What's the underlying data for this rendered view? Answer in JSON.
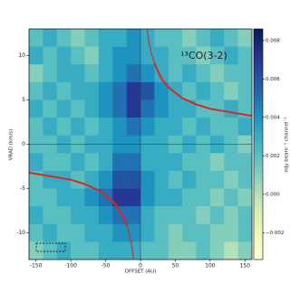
{
  "chart_data": {
    "type": "heatmap",
    "title": "¹³CO(3-2)",
    "x_label": "OFFSET (AU)",
    "y_label": "VRAD (km/s)",
    "colorbar_label": "mJy beam⁻¹ channel⁻¹",
    "xlim": [
      -160,
      160
    ],
    "ylim": [
      -13,
      13
    ],
    "xticks": [
      -150,
      -100,
      -50,
      0,
      50,
      100,
      150
    ],
    "yticks": [
      -10,
      -5,
      0,
      5,
      10
    ],
    "clim": [
      -0.0034,
      0.0086
    ],
    "cticks": [
      {
        "value": -0.002,
        "label": "−0.002"
      },
      {
        "value": 0,
        "label": "0.000"
      },
      0.002,
      0.004,
      0.006,
      0.008
    ],
    "colormap": [
      "#ffffd9",
      "#edf8b1",
      "#c7e9b4",
      "#7fcdbb",
      "#41b6c4",
      "#1d91c0",
      "#225ea8",
      "#253494",
      "#081d58"
    ],
    "hlines": [
      0
    ],
    "vlines": [
      0
    ],
    "x": [
      -150,
      -130,
      -110,
      -90,
      -70,
      -50,
      -30,
      -10,
      10,
      30,
      50,
      70,
      90,
      110,
      130,
      150
    ],
    "y": [
      12,
      10,
      8,
      6,
      4,
      2,
      0,
      -2,
      -4,
      -6,
      -8,
      -10,
      -12
    ],
    "z": [
      [
        0.002,
        0.003,
        0.002,
        0.001,
        0.002,
        0.003,
        0.003,
        0.004,
        0.003,
        0.002,
        0.002,
        0.001,
        0.002,
        0.003,
        0.002,
        0.001
      ],
      [
        0.003,
        0.002,
        0.003,
        0.002,
        0.001,
        0.003,
        0.004,
        0.004,
        0.003,
        0.003,
        0.002,
        0.002,
        0.001,
        0.002,
        0.003,
        0.002
      ],
      [
        0.001,
        0.002,
        0.003,
        0.003,
        0.002,
        0.003,
        0.004,
        0.005,
        0.004,
        0.003,
        0.002,
        0.003,
        0.002,
        0.001,
        0.002,
        0.002
      ],
      [
        0.002,
        0.003,
        0.002,
        0.003,
        0.003,
        0.004,
        0.005,
        0.007,
        0.006,
        0.004,
        0.003,
        0.002,
        0.003,
        0.002,
        0.001,
        0.002
      ],
      [
        0.003,
        0.002,
        0.003,
        0.002,
        0.003,
        0.004,
        0.005,
        0.007,
        0.005,
        0.004,
        0.003,
        0.003,
        0.002,
        0.002,
        0.003,
        0.002
      ],
      [
        0.002,
        0.003,
        0.002,
        0.003,
        0.002,
        0.003,
        0.004,
        0.005,
        0.004,
        0.003,
        0.003,
        0.002,
        0.003,
        0.002,
        0.002,
        0.003
      ],
      [
        0.002,
        0.002,
        0.003,
        0.002,
        0.003,
        0.003,
        0.004,
        0.004,
        0.003,
        0.003,
        0.002,
        0.003,
        0.002,
        0.003,
        0.002,
        0.001
      ],
      [
        0.003,
        0.002,
        0.002,
        0.003,
        0.002,
        0.003,
        0.005,
        0.005,
        0.003,
        0.003,
        0.003,
        0.002,
        0.002,
        0.001,
        0.002,
        0.002
      ],
      [
        0.002,
        0.003,
        0.003,
        0.002,
        0.003,
        0.004,
        0.006,
        0.006,
        0.004,
        0.003,
        0.002,
        0.003,
        0.002,
        0.002,
        0.001,
        0.002
      ],
      [
        0.002,
        0.002,
        0.003,
        0.003,
        0.004,
        0.005,
        0.007,
        0.007,
        0.004,
        0.003,
        0.003,
        0.002,
        0.002,
        0.001,
        0.002,
        0.001
      ],
      [
        0.003,
        0.002,
        0.002,
        0.003,
        0.003,
        0.004,
        0.005,
        0.005,
        0.003,
        0.002,
        0.002,
        0.002,
        0.001,
        0.002,
        0.001,
        0.002
      ],
      [
        0.002,
        0.003,
        0.002,
        0.002,
        0.003,
        0.003,
        0.004,
        0.004,
        0.003,
        0.002,
        0.001,
        0.002,
        0.002,
        0.001,
        0.001,
        0.002
      ],
      [
        0.001,
        0.002,
        0.003,
        0.002,
        0.002,
        0.003,
        0.003,
        0.003,
        0.002,
        0.002,
        0.001,
        0.001,
        0.002,
        0.001,
        0.0,
        0.001
      ]
    ],
    "curves": [
      {
        "color": "#e8201a",
        "style": "solid",
        "x": [
          20,
          30,
          40,
          60,
          80,
          100,
          130,
          160
        ],
        "y": [
          9.1,
          7.4,
          6.4,
          5.2,
          4.5,
          4.0,
          3.6,
          3.2
        ]
      },
      {
        "color": "#e8201a",
        "style": "dotted",
        "x": [
          10,
          12,
          15,
          20
        ],
        "y": [
          12.8,
          11.7,
          10.5,
          9.1
        ]
      },
      {
        "color": "#e8201a",
        "style": "solid",
        "x": [
          -160,
          -130,
          -100,
          -80,
          -60,
          -40,
          -30,
          -20
        ],
        "y": [
          -3.2,
          -3.6,
          -4.0,
          -4.5,
          -5.2,
          -6.4,
          -7.4,
          -9.1
        ]
      },
      {
        "color": "#e8201a",
        "style": "dotted",
        "x": [
          -20,
          -15,
          -12,
          -10
        ],
        "y": [
          -9.1,
          -10.5,
          -11.7,
          -12.8
        ]
      }
    ]
  }
}
